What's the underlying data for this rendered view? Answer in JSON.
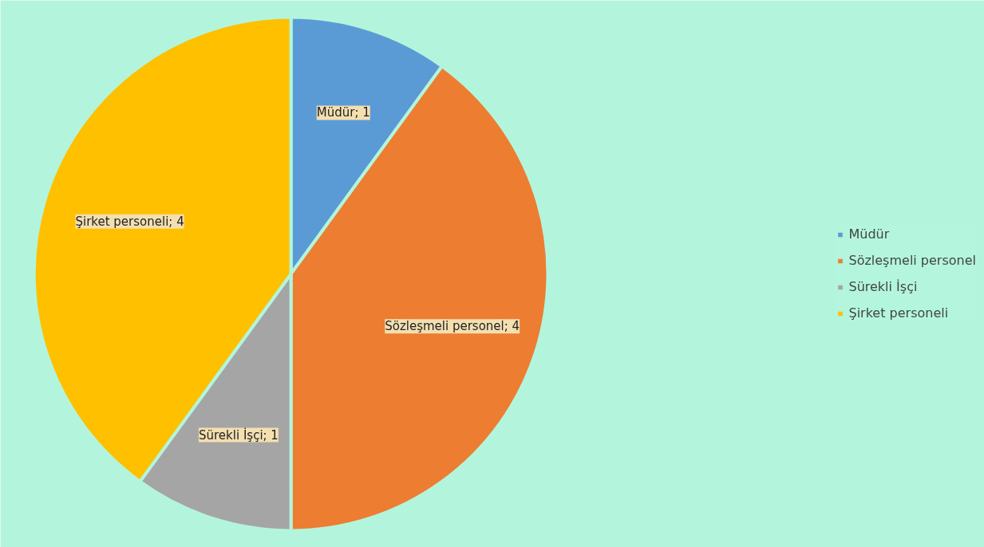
{
  "chart_data": {
    "type": "pie",
    "categories": [
      "Müdür",
      "Sözleşmeli personel",
      "Sürekli İşçi",
      "Şirket personeli"
    ],
    "values": [
      1,
      4,
      1,
      4
    ],
    "colors": [
      "#5b9bd5",
      "#ed7d31",
      "#a5a5a5",
      "#ffc000"
    ],
    "value_labels": [
      "Müdür; 1",
      "Sözleşmeli personel; 4",
      "Sürekli İşçi; 1",
      "Şirket personeli; 4"
    ],
    "legend": "right"
  }
}
